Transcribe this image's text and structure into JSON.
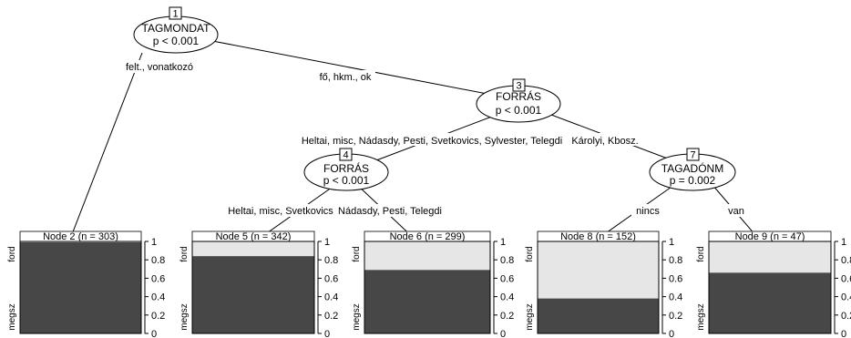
{
  "inner_nodes": [
    {
      "id": "1",
      "variable": "TAGMONDAT",
      "p": "p < 0.001"
    },
    {
      "id": "3",
      "variable": "FORRÁS",
      "p": "p < 0.001"
    },
    {
      "id": "4",
      "variable": "FORRÁS",
      "p": "p < 0.001"
    },
    {
      "id": "7",
      "variable": "TAGADÓNM",
      "p": "p = 0.002"
    }
  ],
  "edge_labels": {
    "n1_left": "felt., vonatkozó",
    "n1_right": "fő, hkm., ok",
    "n3_left": "Heltai, misc, Nádasdy, Pesti, Svetkovics, Sylvester, Telegdi",
    "n3_right": "Károlyi, Kbosz.",
    "n4_left": "Heltai, misc, Svetkovics",
    "n4_right": "Nádasdy, Pesti, Telegdi",
    "n7_left": "nincs",
    "n7_right": "van"
  },
  "terminal_nodes": [
    {
      "id": "2",
      "header": "Node 2 (n = 303)",
      "ford": 0.01
    },
    {
      "id": "5",
      "header": "Node 5 (n = 342)",
      "ford": 0.16
    },
    {
      "id": "6",
      "header": "Node 6 (n = 299)",
      "ford": 0.31
    },
    {
      "id": "8",
      "header": "Node 8 (n = 152)",
      "ford": 0.62
    },
    {
      "id": "9",
      "header": "Node 9 (n = 47)",
      "ford": 0.34
    }
  ],
  "axis": {
    "top_label": "ford",
    "bottom_label": "megsz",
    "ticks": [
      "0",
      "0.2",
      "0.4",
      "0.6",
      "0.8",
      "1"
    ]
  },
  "colors": {
    "megsz": "#474747",
    "ford": "#e6e6e6"
  }
}
